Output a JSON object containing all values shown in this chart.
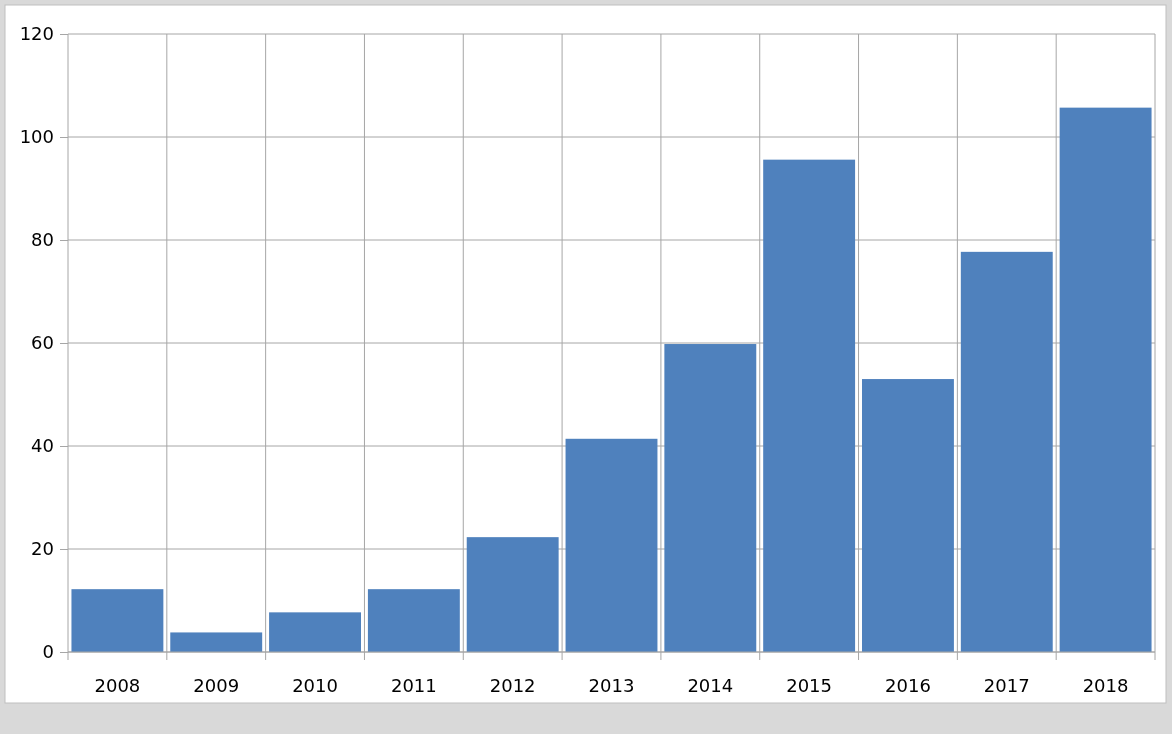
{
  "chart_data": {
    "type": "bar",
    "categories": [
      "2008",
      "2009",
      "2010",
      "2011",
      "2012",
      "2013",
      "2014",
      "2015",
      "2016",
      "2017",
      "2018"
    ],
    "values": [
      12.2,
      3.8,
      7.7,
      12.2,
      22.3,
      41.4,
      59.8,
      95.6,
      53.0,
      77.7,
      105.7
    ],
    "color": "#4f81bd",
    "ylim": [
      0,
      120
    ],
    "yticks": [
      0,
      20,
      40,
      60,
      80,
      100,
      120
    ],
    "grid": true
  }
}
